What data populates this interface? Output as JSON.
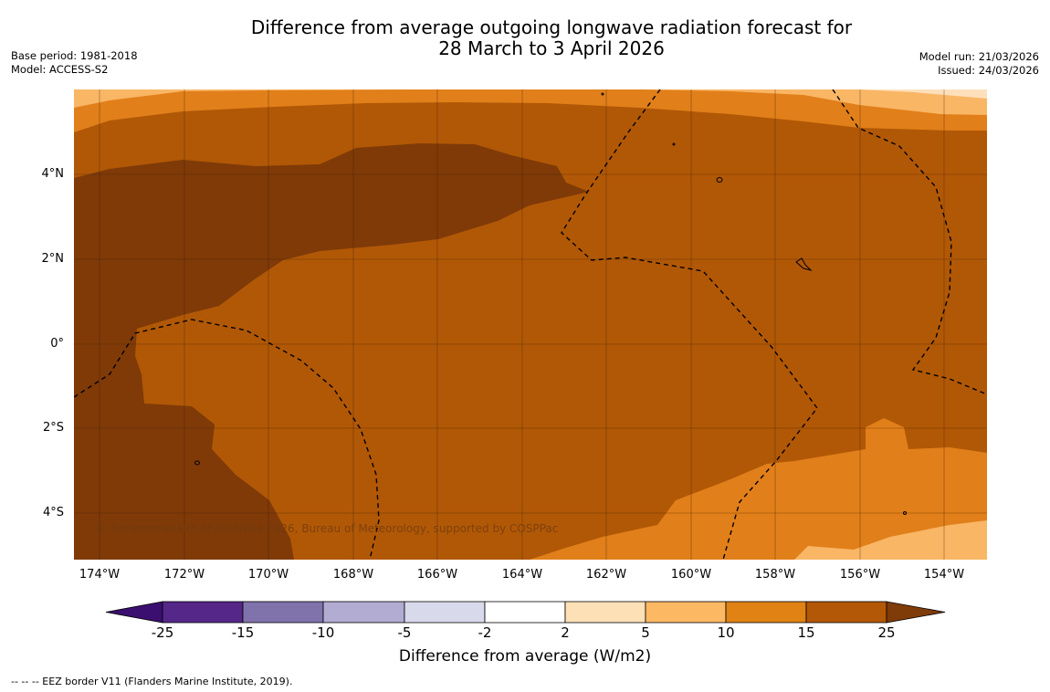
{
  "title": {
    "line1": "Difference from average outgoing longwave radiation forecast for",
    "line2": "28 March to 3 April 2026"
  },
  "meta_left": {
    "base_period": "Base period: 1981-2018",
    "model": "Model: ACCESS-S2"
  },
  "meta_right": {
    "model_run": "Model run: 21/03/2026",
    "issued": "Issued: 24/03/2026"
  },
  "map": {
    "lat_labels": [
      "4°N",
      "2°N",
      "0°",
      "2°S",
      "4°S"
    ],
    "lon_labels": [
      "174°W",
      "172°W",
      "170°W",
      "168°W",
      "166°W",
      "164°W",
      "162°W",
      "160°W",
      "158°W",
      "156°W",
      "154°W"
    ],
    "copyright": "© Commonwealth of Australia 2026, Bureau of Meteorology, supported by COSPPac",
    "region_colors": {
      "band_5_10": "#f9b665",
      "band_10_15": "#e17f1a",
      "band_15_25": "#b15806",
      "band_over_25": "#7f3a08",
      "band_2_5": "#fde0bb"
    }
  },
  "colorbar": {
    "ticks": [
      "-25",
      "-15",
      "-10",
      "-5",
      "-2",
      "2",
      "5",
      "10",
      "15",
      "25"
    ],
    "colors": [
      "#3b0f6f",
      "#542788",
      "#8073ac",
      "#b2abd2",
      "#d8daeb",
      "#ffffff",
      "#fee0b6",
      "#fdb863",
      "#e08214",
      "#b35806",
      "#7f3b08"
    ],
    "label": "Difference from average (W/m2)"
  },
  "footnote": "--  --  -- EEZ border V11 (Flanders Marine Institute, 2019)."
}
